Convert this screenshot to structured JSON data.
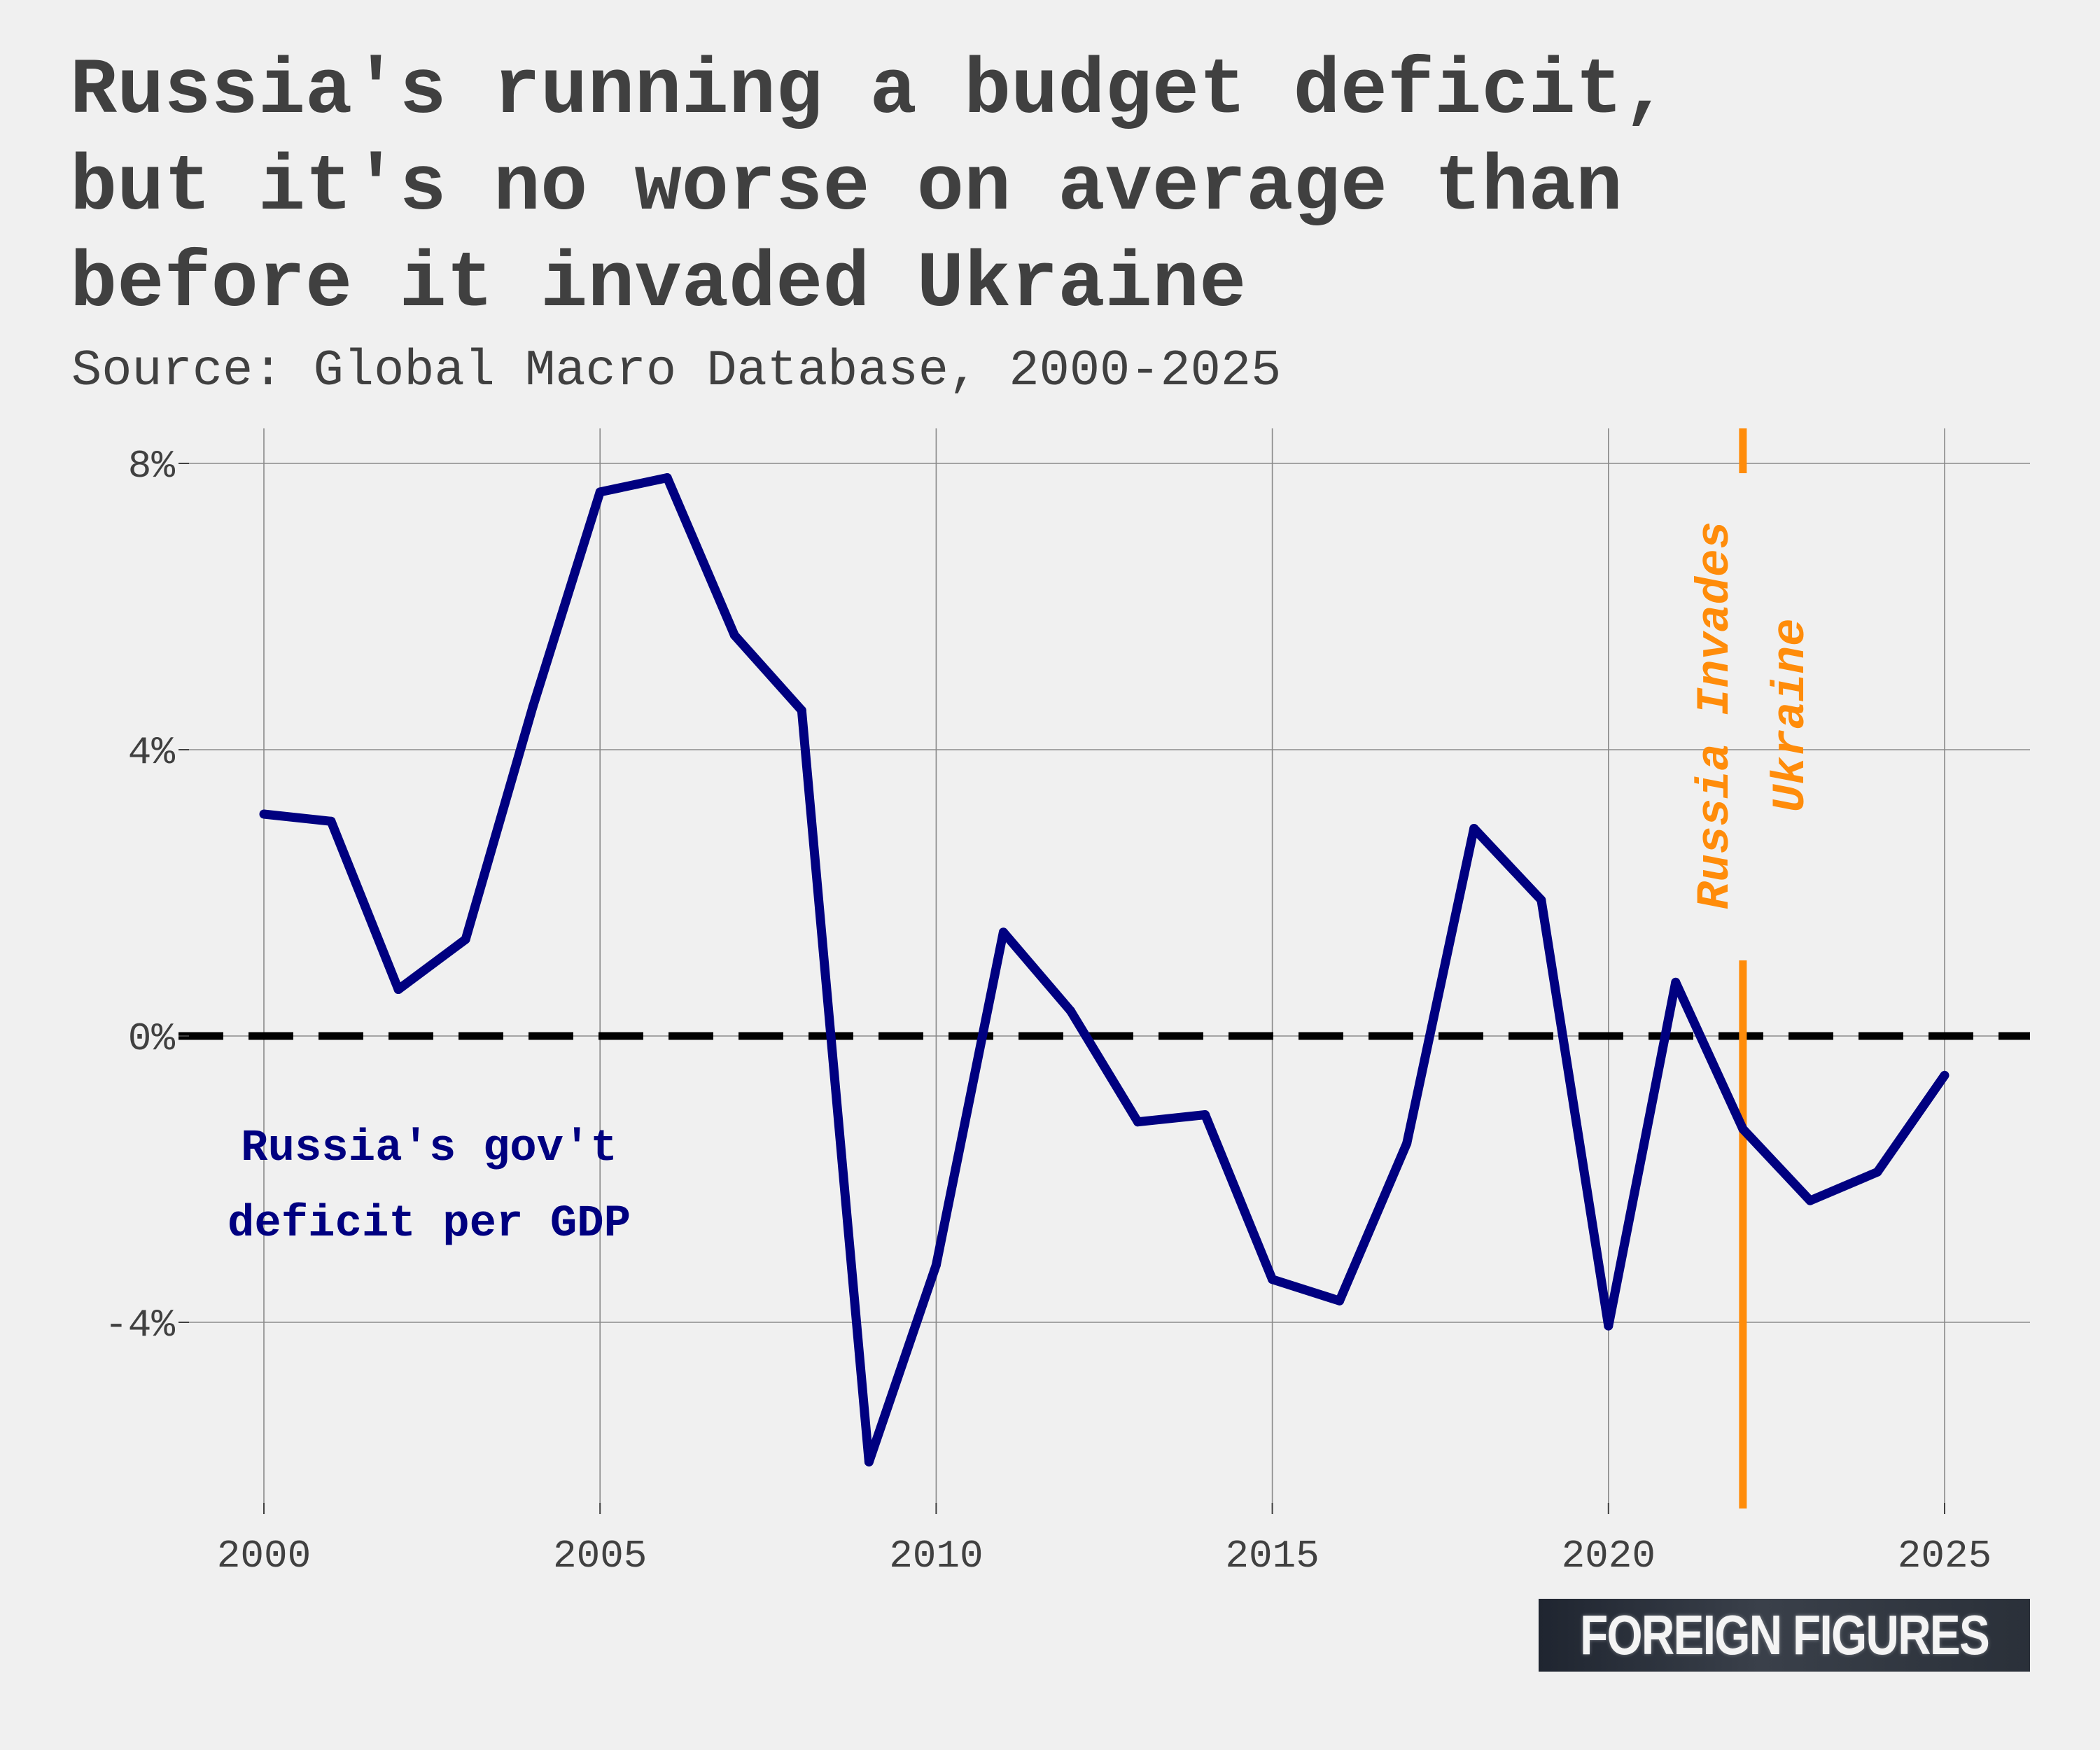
{
  "chart_data": {
    "type": "line",
    "title": "Russia's running a budget deficit,\nbut it's no worse on average than\nbefore it invaded Ukraine",
    "subtitle": "Source: Global Macro Database, 2000-2025",
    "xlabel": "",
    "ylabel": "",
    "xlim": [
      1997.5,
      2026.3
    ],
    "ylim": [
      -6.6,
      8.5
    ],
    "x_ticks": [
      2000,
      2005,
      2010,
      2015,
      2020,
      2025
    ],
    "x_tick_labels": [
      "2000",
      "2005",
      "2010",
      "2015",
      "2020",
      "2025"
    ],
    "y_ticks": [
      8,
      4,
      0,
      -4
    ],
    "y_tick_labels": [
      "8%",
      "4%",
      "0%",
      "-4%"
    ],
    "grid": true,
    "series": [
      {
        "name": "Russia's gov't deficit per GDP",
        "color": "#000080",
        "x": [
          2000,
          2001,
          2002,
          2003,
          2004,
          2005,
          2006,
          2007,
          2008,
          2009,
          2010,
          2011,
          2012,
          2013,
          2014,
          2015,
          2016,
          2017,
          2018,
          2019,
          2020,
          2021,
          2022,
          2023,
          2024,
          2025
        ],
        "y": [
          3.1,
          3.0,
          0.65,
          1.35,
          4.6,
          7.6,
          7.8,
          5.6,
          4.55,
          -5.95,
          -3.2,
          1.45,
          0.35,
          -1.2,
          -1.1,
          -3.4,
          -3.7,
          -1.5,
          2.9,
          1.9,
          -4.05,
          0.75,
          -1.3,
          -2.3,
          -1.9,
          -0.55
        ]
      }
    ],
    "reference_lines": [
      {
        "orientation": "horizontal",
        "value": 0,
        "style": "dashed",
        "color": "#000000"
      },
      {
        "orientation": "vertical",
        "value": 2022,
        "style": "solid",
        "color": "#ff8c0a"
      }
    ],
    "annotations": [
      {
        "lines": [
          "Russia's gov't",
          "deficit per GDP"
        ],
        "color": "#000080"
      },
      {
        "lines": [
          "Russia Invades",
          "Ukraine"
        ],
        "color": "#ff8c0a"
      }
    ]
  },
  "brand": {
    "label": "FOREIGN FIGURES"
  }
}
